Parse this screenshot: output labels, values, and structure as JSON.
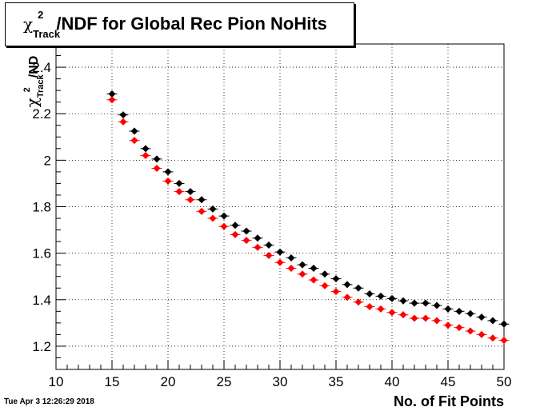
{
  "title": {
    "symbol": "χ",
    "subscript": "Track",
    "superscript": "2",
    "rest": "/NDF for Global Rec Pion NoHits"
  },
  "axes": {
    "xlabel": "No. of Fit Points",
    "ylabel_symbol": "χ",
    "ylabel_sub": "Track",
    "ylabel_sup": "2",
    "ylabel_rest": "/ND"
  },
  "timestamp": "Tue Apr  3 12:26:29 2018",
  "chart_data": {
    "type": "scatter",
    "title": "χ²Track/NDF for Global Rec Pion NoHits",
    "xlabel": "No. of Fit Points",
    "ylabel": "χ²Track/ND",
    "xlim": [
      10,
      50
    ],
    "ylim": [
      1.1,
      2.5
    ],
    "xticks": [
      10,
      15,
      20,
      25,
      30,
      35,
      40,
      45,
      50
    ],
    "yticks": [
      1.2,
      1.4,
      1.6,
      1.8,
      2,
      2.2,
      2.4
    ],
    "grid": true,
    "x": [
      15,
      16,
      17,
      18,
      19,
      20,
      21,
      22,
      23,
      24,
      25,
      26,
      27,
      28,
      29,
      30,
      31,
      32,
      33,
      34,
      35,
      36,
      37,
      38,
      39,
      40,
      41,
      42,
      43,
      44,
      45,
      46,
      47,
      48,
      49,
      50
    ],
    "series": [
      {
        "color": "#000000",
        "values": [
          2.285,
          2.195,
          2.125,
          2.05,
          2.005,
          1.95,
          1.9,
          1.865,
          1.83,
          1.79,
          1.76,
          1.72,
          1.695,
          1.665,
          1.635,
          1.605,
          1.58,
          1.55,
          1.535,
          1.51,
          1.49,
          1.465,
          1.45,
          1.425,
          1.415,
          1.405,
          1.395,
          1.385,
          1.385,
          1.375,
          1.36,
          1.35,
          1.34,
          1.325,
          1.31,
          1.295
        ]
      },
      {
        "color": "#ff0000",
        "values": [
          2.26,
          2.165,
          2.085,
          2.02,
          1.965,
          1.91,
          1.865,
          1.83,
          1.78,
          1.75,
          1.715,
          1.68,
          1.655,
          1.625,
          1.59,
          1.56,
          1.535,
          1.51,
          1.485,
          1.46,
          1.435,
          1.41,
          1.39,
          1.37,
          1.36,
          1.345,
          1.335,
          1.32,
          1.32,
          1.31,
          1.29,
          1.28,
          1.265,
          1.25,
          1.235,
          1.225
        ]
      }
    ]
  }
}
